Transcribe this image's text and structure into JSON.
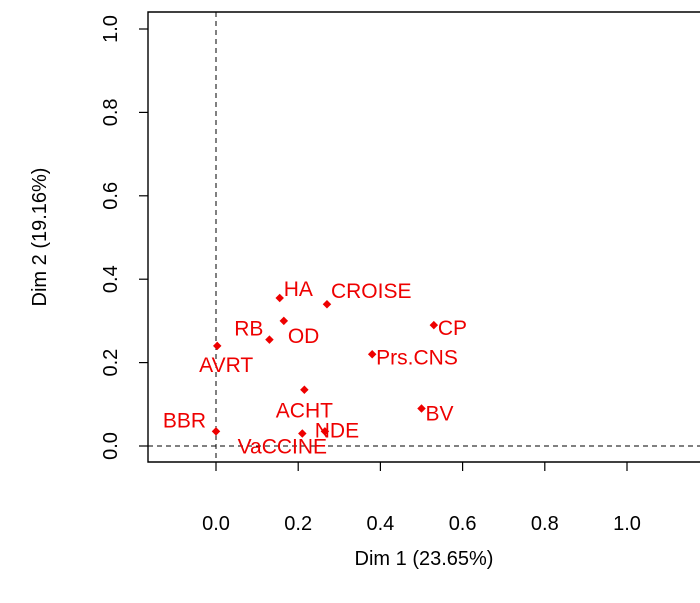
{
  "chart_data": {
    "type": "scatter",
    "title": "",
    "xlabel": "Dim 1 (23.65%)",
    "ylabel": "Dim 2 (19.16%)",
    "xlim": [
      -0.16,
      1.16
    ],
    "ylim": [
      -0.04,
      1.03
    ],
    "x_ticks": [
      "0.0",
      "0.2",
      "0.4",
      "0.6",
      "0.8",
      "1.0"
    ],
    "y_ticks": [
      "0.0",
      "0.2",
      "0.4",
      "0.6",
      "0.8",
      "1.0"
    ],
    "grid": false,
    "reference_lines": {
      "x": 0,
      "y": 0,
      "style": "dashed"
    },
    "point_color": "#ee0000",
    "points": [
      {
        "label": "HA",
        "x": 0.155,
        "y": 0.355
      },
      {
        "label": "CROISE",
        "x": 0.27,
        "y": 0.34
      },
      {
        "label": "RB",
        "x": 0.13,
        "y": 0.255
      },
      {
        "label": "OD",
        "x": 0.165,
        "y": 0.3
      },
      {
        "label": "CP",
        "x": 0.53,
        "y": 0.29
      },
      {
        "label": "AVRT",
        "x": 0.003,
        "y": 0.24
      },
      {
        "label": "Prs.CNS",
        "x": 0.38,
        "y": 0.22
      },
      {
        "label": "ACHT",
        "x": 0.215,
        "y": 0.135
      },
      {
        "label": "BV",
        "x": 0.5,
        "y": 0.09
      },
      {
        "label": "BBR",
        "x": 0.0,
        "y": 0.035
      },
      {
        "label": "NDE",
        "x": 0.265,
        "y": 0.035
      },
      {
        "label": "VaCCINE",
        "x": 0.21,
        "y": 0.03
      }
    ]
  }
}
